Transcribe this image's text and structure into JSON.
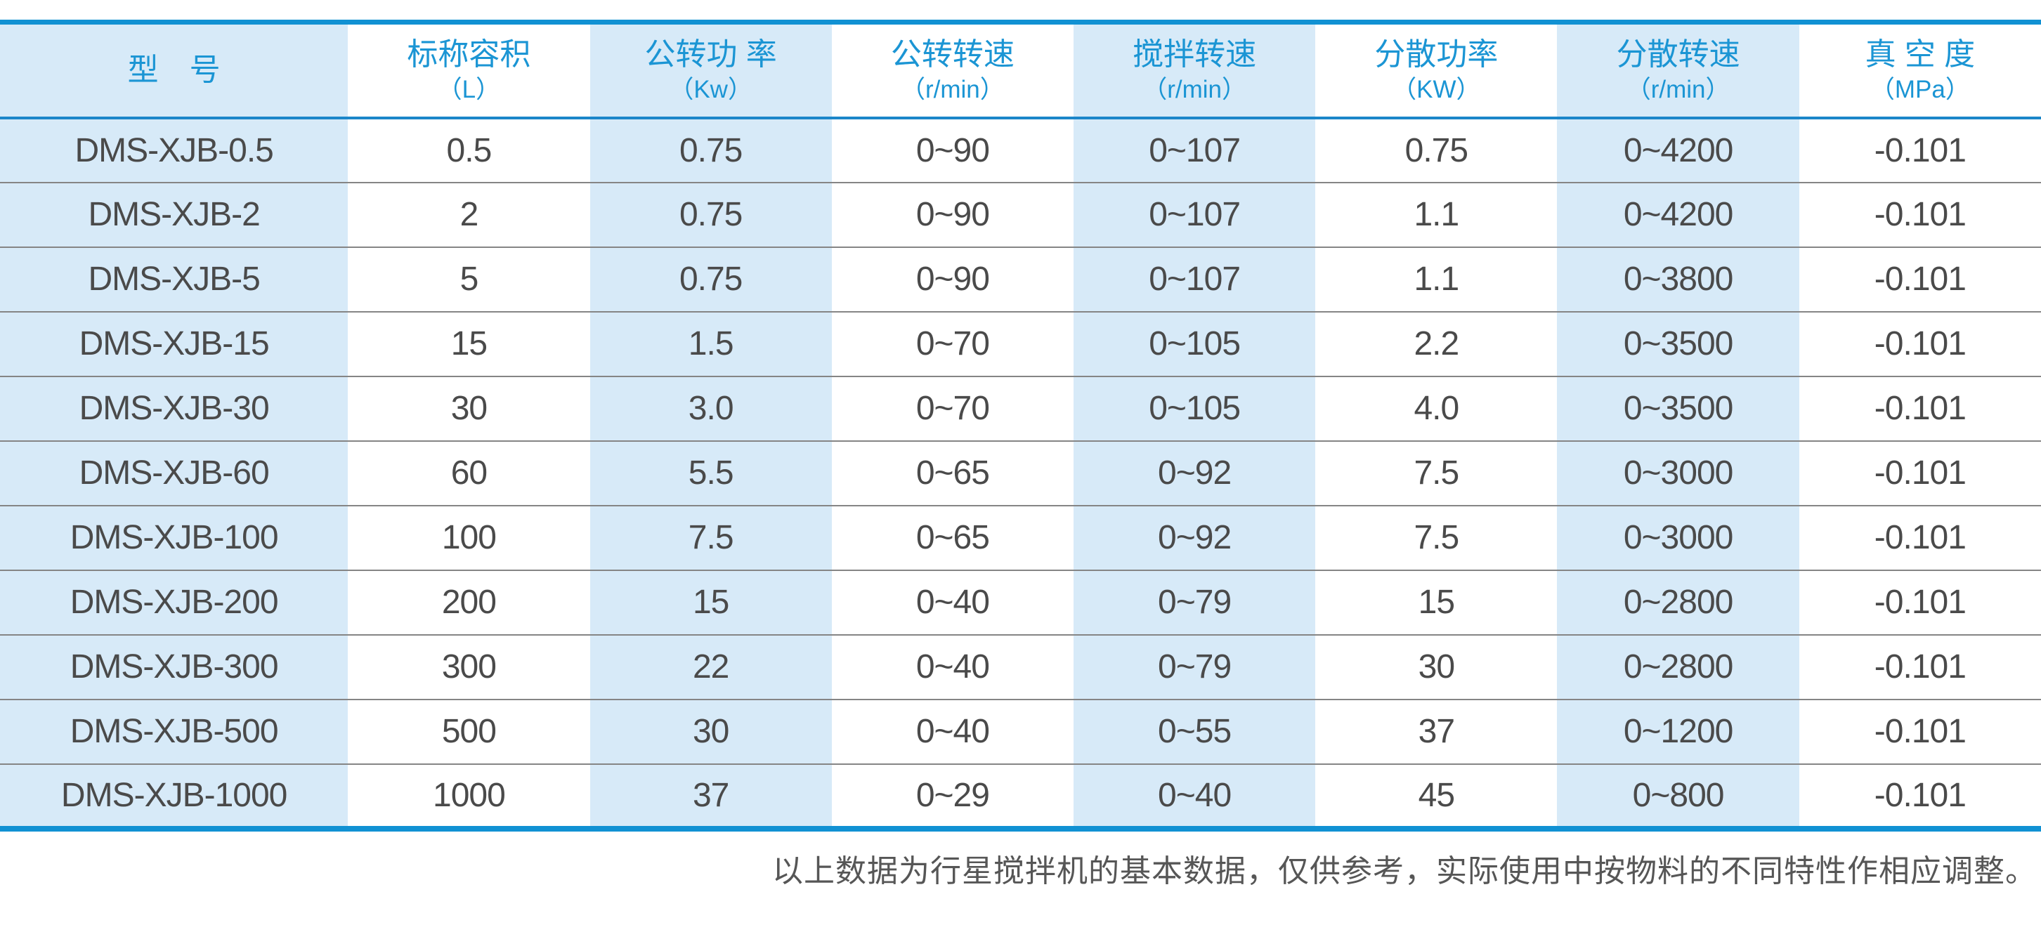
{
  "colors": {
    "accent_blue": "#1191d3",
    "header_rule_blue": "#1b86c9",
    "stripe_light_blue": "#d7eaf8",
    "header_text_blue": "#1b95d4",
    "body_text_gray": "#4a4a4a",
    "row_rule_gray": "#858585",
    "note_text_gray": "#565656"
  },
  "table": {
    "columns": [
      {
        "key": "model",
        "title": "型　号",
        "unit": "",
        "shaded": true,
        "width_pct": 17.05
      },
      {
        "key": "volume",
        "title": "标称容积",
        "unit": "（L）",
        "shaded": false,
        "width_pct": 11.85
      },
      {
        "key": "rev_power",
        "title": "公转功 率",
        "unit": "（Kw）",
        "shaded": true,
        "width_pct": 11.85
      },
      {
        "key": "rev_speed",
        "title": "公转转速",
        "unit": "（r/min）",
        "shaded": false,
        "width_pct": 11.85
      },
      {
        "key": "stir_speed",
        "title": "搅拌转速",
        "unit": "（r/min）",
        "shaded": true,
        "width_pct": 11.85
      },
      {
        "key": "disp_power",
        "title": "分散功率",
        "unit": "（KW）",
        "shaded": false,
        "width_pct": 11.85
      },
      {
        "key": "disp_speed",
        "title": "分散转速",
        "unit": "（r/min）",
        "shaded": true,
        "width_pct": 11.85
      },
      {
        "key": "vacuum",
        "title": "真 空 度",
        "unit": "（MPa）",
        "shaded": false,
        "width_pct": 11.85
      }
    ],
    "rows": [
      [
        "DMS-XJB-0.5",
        "0.5",
        "0.75",
        "0~90",
        "0~107",
        "0.75",
        "0~4200",
        "-0.101"
      ],
      [
        "DMS-XJB-2",
        "2",
        "0.75",
        "0~90",
        "0~107",
        "1.1",
        "0~4200",
        "-0.101"
      ],
      [
        "DMS-XJB-5",
        "5",
        "0.75",
        "0~90",
        "0~107",
        "1.1",
        "0~3800",
        "-0.101"
      ],
      [
        "DMS-XJB-15",
        "15",
        "1.5",
        "0~70",
        "0~105",
        "2.2",
        "0~3500",
        "-0.101"
      ],
      [
        "DMS-XJB-30",
        "30",
        "3.0",
        "0~70",
        "0~105",
        "4.0",
        "0~3500",
        "-0.101"
      ],
      [
        "DMS-XJB-60",
        "60",
        "5.5",
        "0~65",
        "0~92",
        "7.5",
        "0~3000",
        "-0.101"
      ],
      [
        "DMS-XJB-100",
        "100",
        "7.5",
        "0~65",
        "0~92",
        "7.5",
        "0~3000",
        "-0.101"
      ],
      [
        "DMS-XJB-200",
        "200",
        "15",
        "0~40",
        "0~79",
        "15",
        "0~2800",
        "-0.101"
      ],
      [
        "DMS-XJB-300",
        "300",
        "22",
        "0~40",
        "0~79",
        "30",
        "0~2800",
        "-0.101"
      ],
      [
        "DMS-XJB-500",
        "500",
        "30",
        "0~40",
        "0~55",
        "37",
        "0~1200",
        "-0.101"
      ],
      [
        "DMS-XJB-1000",
        "1000",
        "37",
        "0~29",
        "0~40",
        "45",
        "0~800",
        "-0.101"
      ]
    ]
  },
  "footer": {
    "note": "以上数据为行星搅拌机的基本数据，仅供参考，实际使用中按物料的不同特性作相应调整。"
  }
}
